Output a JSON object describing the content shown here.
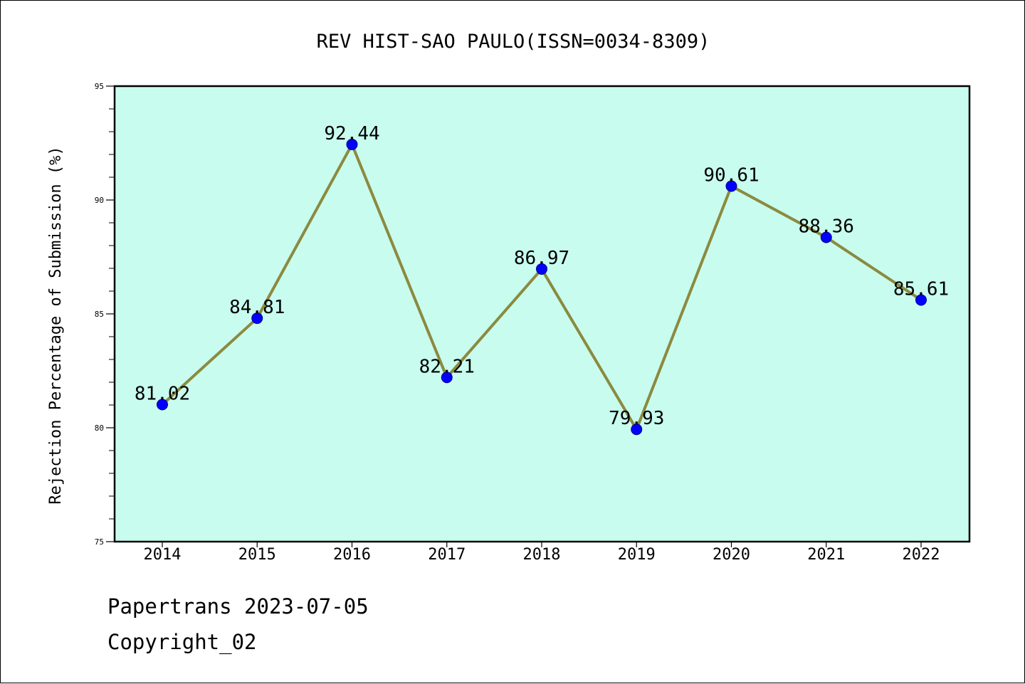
{
  "chart_data": {
    "type": "line",
    "title": "REV HIST-SAO PAULO(ISSN=0034-8309)",
    "xlabel": "",
    "ylabel": "Rejection Percentage of Submission (%)",
    "categories": [
      "2014",
      "2015",
      "2016",
      "2017",
      "2018",
      "2019",
      "2020",
      "2021",
      "2022"
    ],
    "values": [
      81.02,
      84.81,
      92.44,
      82.21,
      86.97,
      79.93,
      90.61,
      88.36,
      85.61
    ],
    "data_labels": [
      "81.02",
      "84.81",
      "92.44",
      "82.21",
      "86.97",
      "79.93",
      "90.61",
      "88.36",
      "85.61"
    ],
    "ylim": [
      75,
      95
    ],
    "yticks": [
      75,
      80,
      85,
      90,
      95
    ],
    "yticks_minor_step": 1,
    "grid": false,
    "legend": "none",
    "colors": {
      "plot_background": "#c8fcee",
      "line": "#8b8a3f",
      "marker": "#0000ff",
      "marker_edge": "#00008b",
      "axes": "#000000"
    }
  },
  "footer": {
    "line1": "Papertrans 2023-07-05",
    "line2": "Copyright_02"
  }
}
